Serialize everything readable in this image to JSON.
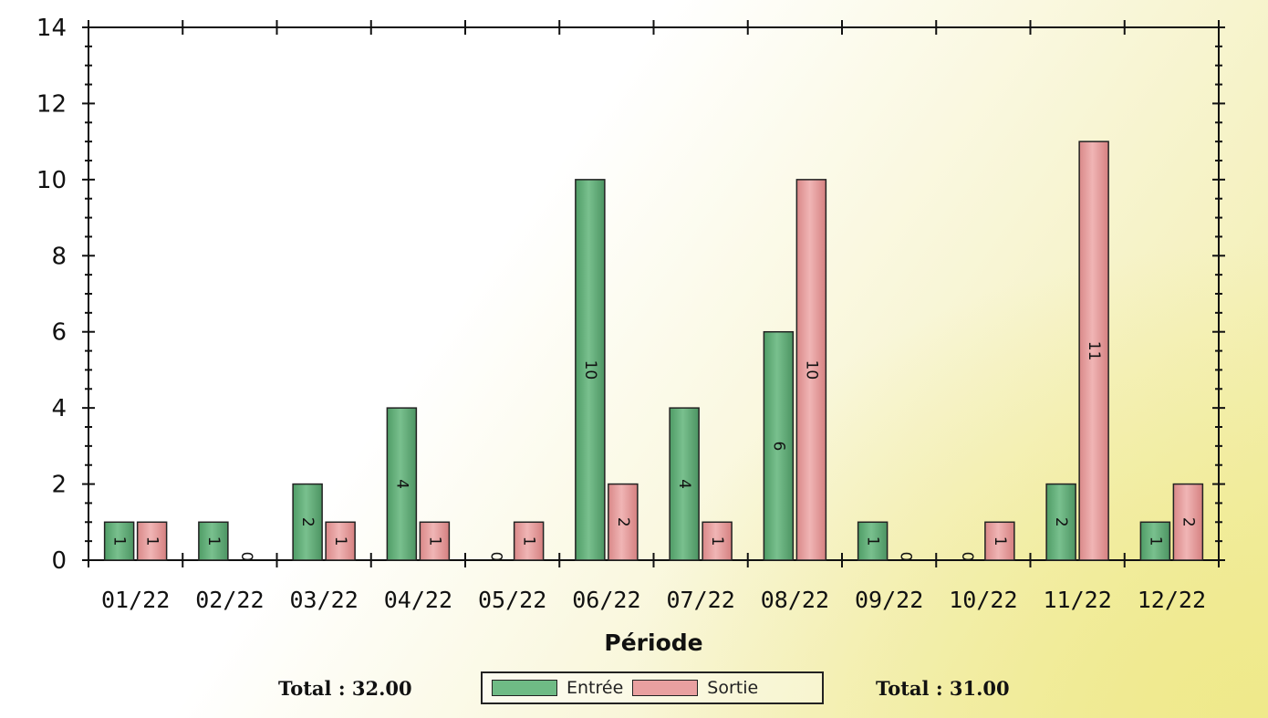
{
  "chart_data": {
    "type": "bar",
    "title": "",
    "xlabel": "Période",
    "ylabel": "",
    "ylim": [
      0,
      14
    ],
    "yticks": [
      0,
      2,
      4,
      6,
      8,
      10,
      12,
      14
    ],
    "categories": [
      "01/22",
      "02/22",
      "03/22",
      "04/22",
      "05/22",
      "06/22",
      "07/22",
      "08/22",
      "09/22",
      "10/22",
      "11/22",
      "12/22"
    ],
    "series": [
      {
        "name": "Entrée",
        "color": "#6fbb85",
        "values": [
          1,
          1,
          2,
          4,
          0,
          10,
          4,
          6,
          1,
          0,
          2,
          1
        ]
      },
      {
        "name": "Sortie",
        "color": "#e9a0a0",
        "values": [
          1,
          0,
          1,
          1,
          1,
          2,
          1,
          10,
          0,
          1,
          11,
          2
        ]
      }
    ],
    "grid": false,
    "legend_position": "bottom-center"
  },
  "totals": {
    "left": "Total : 32.00",
    "right": "Total : 31.00"
  }
}
